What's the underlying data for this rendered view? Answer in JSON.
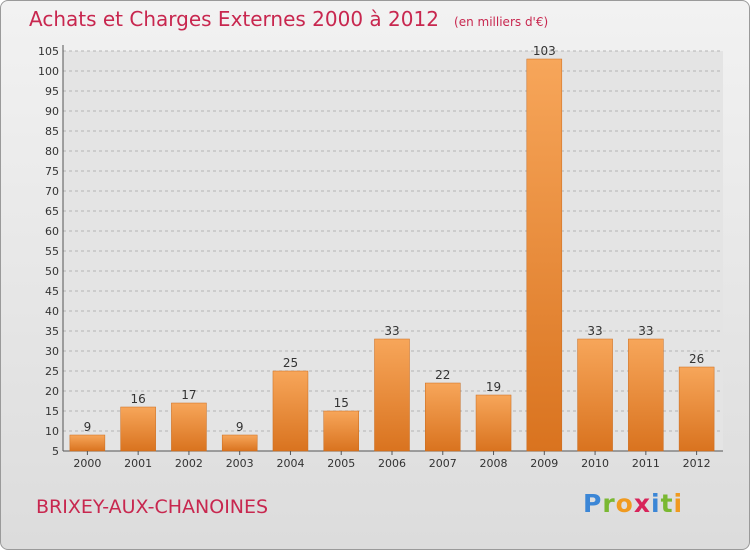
{
  "header": {
    "title": "Achats et Charges Externes 2000 à 2012",
    "unit": "(en milliers d'€)"
  },
  "footer": {
    "commune": "BRIXEY-AUX-CHANOINES",
    "logo": "Proxiti"
  },
  "colors": {
    "accent": "#c8274f",
    "bar_light": "#f7a65a",
    "bar_dark": "#d9731f"
  },
  "chart_data": {
    "type": "bar",
    "categories": [
      "2000",
      "2001",
      "2002",
      "2003",
      "2004",
      "2005",
      "2006",
      "2007",
      "2008",
      "2009",
      "2010",
      "2011",
      "2012"
    ],
    "values": [
      9,
      16,
      17,
      9,
      25,
      15,
      33,
      22,
      19,
      103,
      33,
      33,
      26
    ],
    "ylim": [
      5,
      105
    ],
    "yticks": [
      5,
      10,
      15,
      20,
      25,
      30,
      35,
      40,
      45,
      50,
      55,
      60,
      65,
      70,
      75,
      80,
      85,
      90,
      95,
      100,
      105
    ],
    "grid": "horizontal-dashed"
  }
}
